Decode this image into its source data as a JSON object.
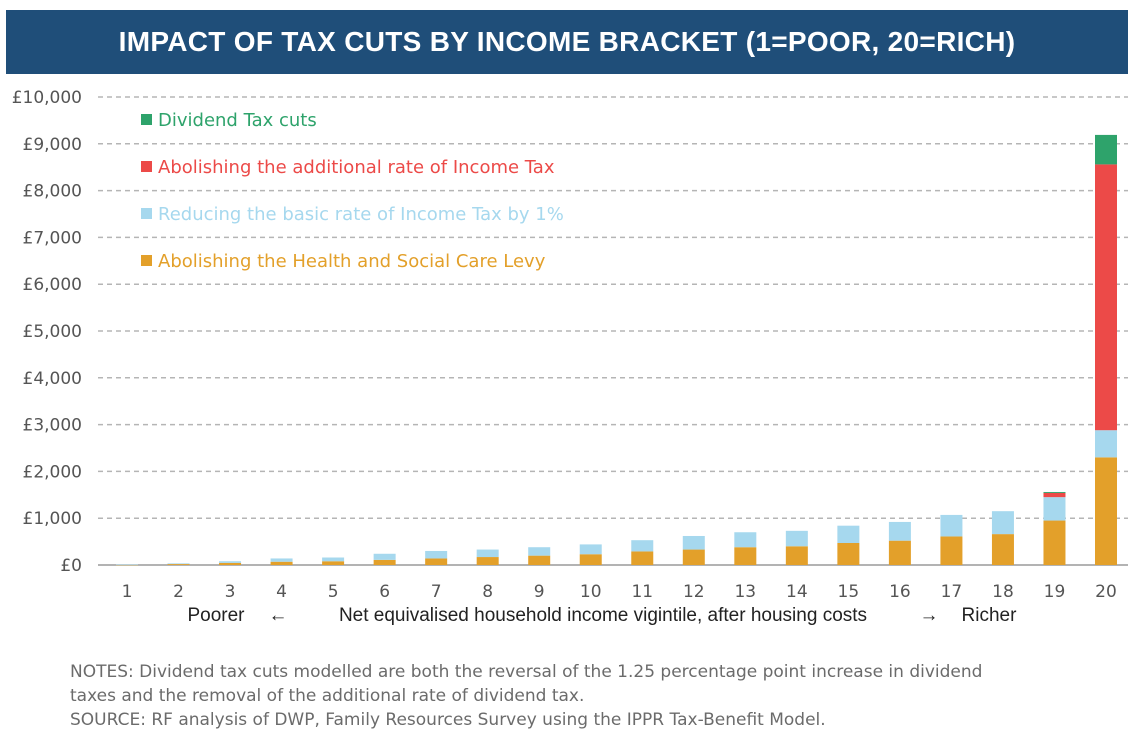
{
  "title": "IMPACT OF TAX CUTS BY INCOME BRACKET (1=POOR, 20=RICH)",
  "notes": {
    "line1": "NOTES: Dividend tax cuts modelled are both the reversal of the 1.25 percentage point increase in dividend",
    "line2": "taxes and the removal of the additional rate of dividend tax.",
    "source": "SOURCE: RF analysis of DWP, Family Resources Survey using the IPPR Tax-Benefit Model."
  },
  "chart_data": {
    "type": "bar",
    "stacked": true,
    "categories": [
      "1",
      "2",
      "3",
      "4",
      "5",
      "6",
      "7",
      "8",
      "9",
      "10",
      "11",
      "12",
      "13",
      "14",
      "15",
      "16",
      "17",
      "18",
      "19",
      "20"
    ],
    "y_ticks": [
      "£0",
      "£1,000",
      "£2,000",
      "£3,000",
      "£4,000",
      "£5,000",
      "£6,000",
      "£7,000",
      "£8,000",
      "£9,000",
      "£10,000"
    ],
    "ylim": [
      0,
      10000
    ],
    "grid": true,
    "legend_position": "top-left",
    "xlabel": {
      "left": "Poorer",
      "left_arrow": "←",
      "center": "Net equivalised household income vigintile, after housing costs",
      "right_arrow": "→",
      "right": "Richer"
    },
    "series": [
      {
        "name": "Abolishing the Health and Social Care Levy",
        "color": "#e3a02a",
        "values": [
          5,
          20,
          45,
          70,
          80,
          110,
          140,
          170,
          200,
          230,
          290,
          330,
          380,
          400,
          470,
          520,
          610,
          660,
          950,
          2300
        ]
      },
      {
        "name": "Reducing the basic rate of Income Tax by 1%",
        "color": "#a6d8ee",
        "values": [
          5,
          15,
          35,
          70,
          80,
          130,
          160,
          160,
          180,
          210,
          240,
          290,
          320,
          330,
          370,
          400,
          460,
          490,
          500,
          580
        ]
      },
      {
        "name": "Abolishing the additional rate of Income Tax",
        "color": "#ec4a48",
        "values": [
          0,
          0,
          0,
          0,
          0,
          0,
          0,
          0,
          0,
          0,
          0,
          0,
          0,
          0,
          0,
          0,
          0,
          0,
          90,
          5680
        ]
      },
      {
        "name": "Dividend Tax cuts",
        "color": "#2ea36b",
        "values": [
          0,
          0,
          0,
          0,
          0,
          0,
          0,
          0,
          0,
          0,
          0,
          0,
          0,
          0,
          0,
          0,
          0,
          0,
          20,
          630
        ]
      }
    ],
    "legend_order": [
      3,
      2,
      1,
      0
    ]
  }
}
